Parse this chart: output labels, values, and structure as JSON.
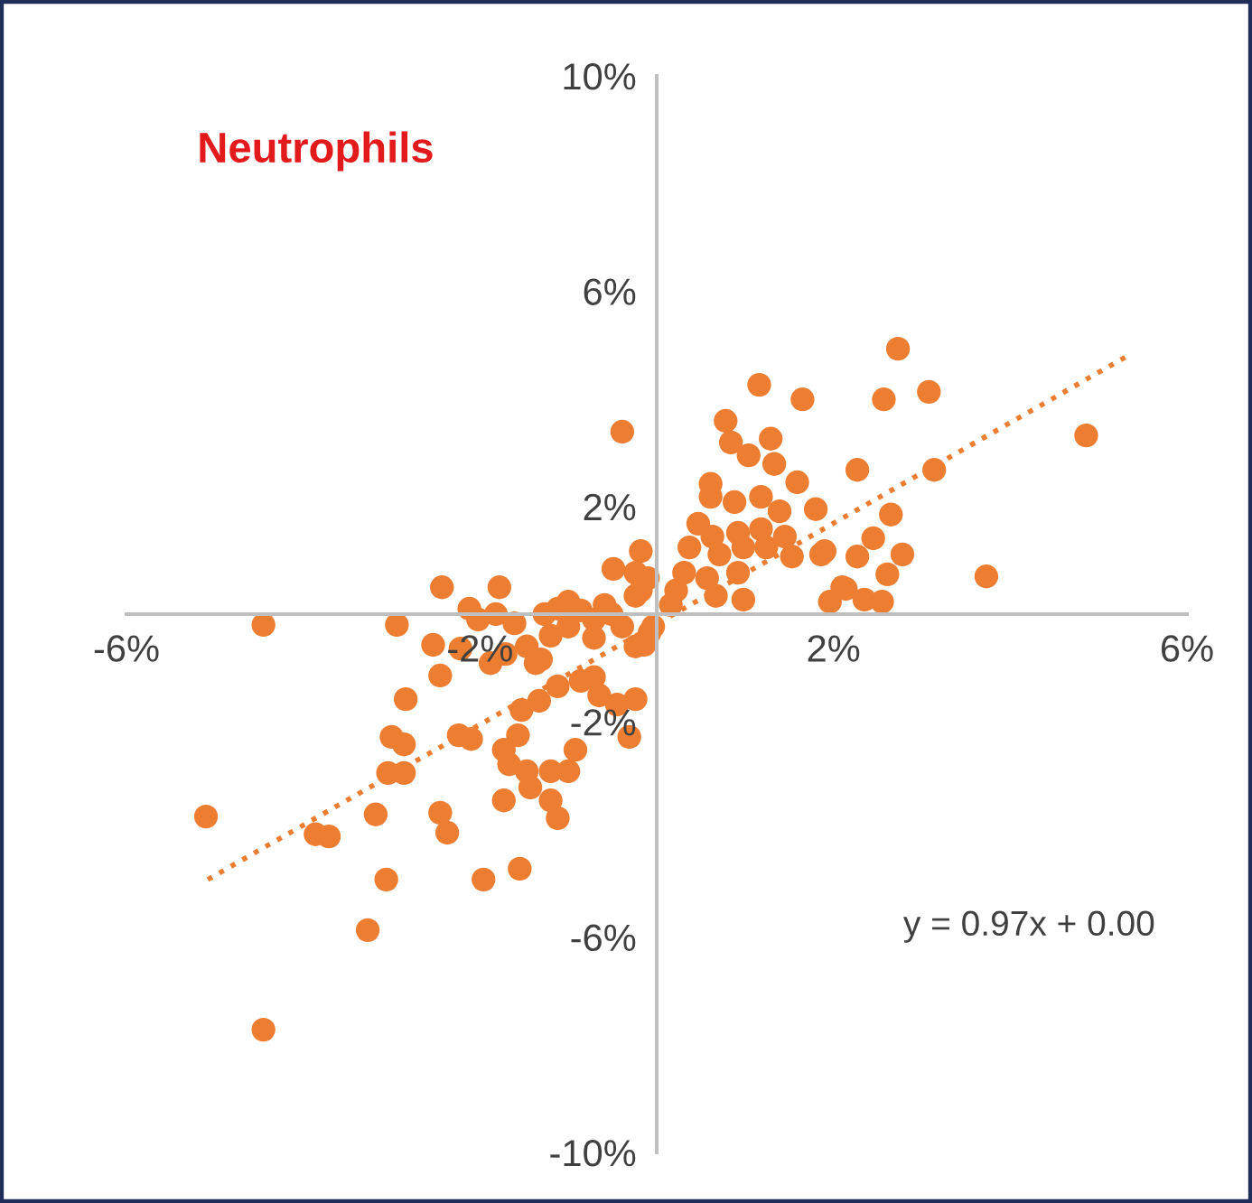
{
  "chart_data": {
    "type": "scatter",
    "title": "Neutrophils",
    "annotations": [
      "y = 0.97x + 0.00"
    ],
    "xlim": [
      -6,
      6
    ],
    "ylim": [
      -10,
      10
    ],
    "xticks": [
      {
        "value": -6,
        "label": "-6%"
      },
      {
        "value": -2,
        "label": "-2%"
      },
      {
        "value": 2,
        "label": "2%"
      },
      {
        "value": 6,
        "label": "6%"
      }
    ],
    "yticks": [
      {
        "value": -10,
        "label": "-10%"
      },
      {
        "value": -6,
        "label": "-6%"
      },
      {
        "value": -2,
        "label": "-2%"
      },
      {
        "value": 2,
        "label": "2%"
      },
      {
        "value": 6,
        "label": "6%"
      },
      {
        "value": 10,
        "label": "10%"
      }
    ],
    "grid": false,
    "marker": "circle",
    "series": [
      {
        "color": "#ed7d31",
        "x": [
          -5.1,
          -4.45,
          -4.45,
          -2.94,
          -2.43,
          -3.86,
          -3.71,
          -3.27,
          -3.06,
          -3.18,
          -3.04,
          -2.86,
          -3.0,
          -2.86,
          -2.84,
          -2.45,
          -2.37,
          -1.96,
          -1.55,
          -1.73,
          -1.43,
          -2.24,
          -2.1,
          -2.45,
          -2.53,
          -2.22,
          -1.78,
          -2.12,
          -2.02,
          -1.82,
          -1.61,
          -1.71,
          -1.47,
          -1.37,
          -1.27,
          -1.12,
          -1.0,
          -0.86,
          -0.71,
          -0.59,
          -0.49,
          -0.24,
          -0.18,
          -0.39,
          -0.24,
          -0.08,
          -0.18,
          -1.12,
          -0.86,
          -0.65,
          -0.45,
          -0.24,
          -0.31,
          -0.71,
          -1.53,
          -1.57,
          -1.73,
          -1.67,
          -1.47,
          -1.2,
          -1.0,
          -0.92,
          -1.2,
          -1.12,
          -1.31,
          -1.88,
          -1.33,
          -1.0,
          -1.2,
          -0.71,
          -0.39,
          1.16,
          1.65,
          2.73,
          2.57,
          3.08,
          3.14,
          0.78,
          0.84,
          1.04,
          1.29,
          1.33,
          0.61,
          0.61,
          0.88,
          1.18,
          1.59,
          1.39,
          1.8,
          2.27,
          2.65,
          0.47,
          0.63,
          0.92,
          1.18,
          1.45,
          0.37,
          0.71,
          0.98,
          1.24,
          1.53,
          1.9,
          2.45,
          2.78,
          2.27,
          2.61,
          0.31,
          0.57,
          0.92,
          0.22,
          0.67,
          0.98,
          2.1,
          1.96,
          2.35,
          2.55,
          -0.1,
          -0.24,
          -0.51,
          -0.04,
          0.16,
          -0.14,
          4.86,
          1.86,
          3.73,
          2.14
        ],
        "values": [
          -3.76,
          -0.2,
          -7.72,
          -0.2,
          0.5,
          -4.09,
          -4.13,
          -5.87,
          -4.93,
          -3.72,
          -2.95,
          -2.95,
          -2.28,
          -2.42,
          -1.58,
          -3.69,
          -4.06,
          -4.93,
          -4.73,
          -3.46,
          -3.22,
          -2.25,
          -2.32,
          -1.14,
          -0.57,
          -0.64,
          0.5,
          0.1,
          -0.1,
          0.0,
          -0.17,
          -0.74,
          -0.6,
          -0.91,
          0.0,
          0.1,
          0.23,
          0.07,
          -0.1,
          0.17,
          0.84,
          0.77,
          1.17,
          -0.23,
          -0.6,
          -0.34,
          0.44,
          -1.34,
          -1.24,
          -1.51,
          -1.68,
          -1.58,
          -2.28,
          -1.17,
          -1.78,
          -2.25,
          -2.52,
          -2.79,
          -2.92,
          -2.92,
          -2.92,
          -2.52,
          -3.46,
          -3.79,
          -0.84,
          -0.91,
          -1.61,
          -0.23,
          -0.4,
          -0.44,
          3.39,
          4.26,
          3.99,
          4.93,
          3.99,
          4.13,
          2.68,
          3.59,
          3.19,
          2.95,
          3.26,
          2.79,
          2.42,
          2.18,
          2.08,
          2.18,
          2.45,
          1.91,
          1.95,
          2.68,
          1.85,
          1.68,
          1.44,
          1.51,
          1.58,
          1.44,
          1.24,
          1.11,
          1.24,
          1.24,
          1.07,
          1.17,
          1.41,
          1.11,
          1.07,
          0.74,
          0.77,
          0.67,
          0.77,
          0.44,
          0.34,
          0.27,
          0.5,
          0.23,
          0.27,
          0.23,
          0.67,
          0.34,
          0.0,
          -0.23,
          0.17,
          -0.57,
          3.32,
          1.11,
          0.7,
          0.47
        ]
      },
      {
        "type": "line",
        "color": "#ed7d31",
        "line_style": "dotted",
        "marker": "none",
        "x": [
          -5.08,
          5.33
        ],
        "values": [
          -4.93,
          4.8
        ]
      }
    ]
  }
}
